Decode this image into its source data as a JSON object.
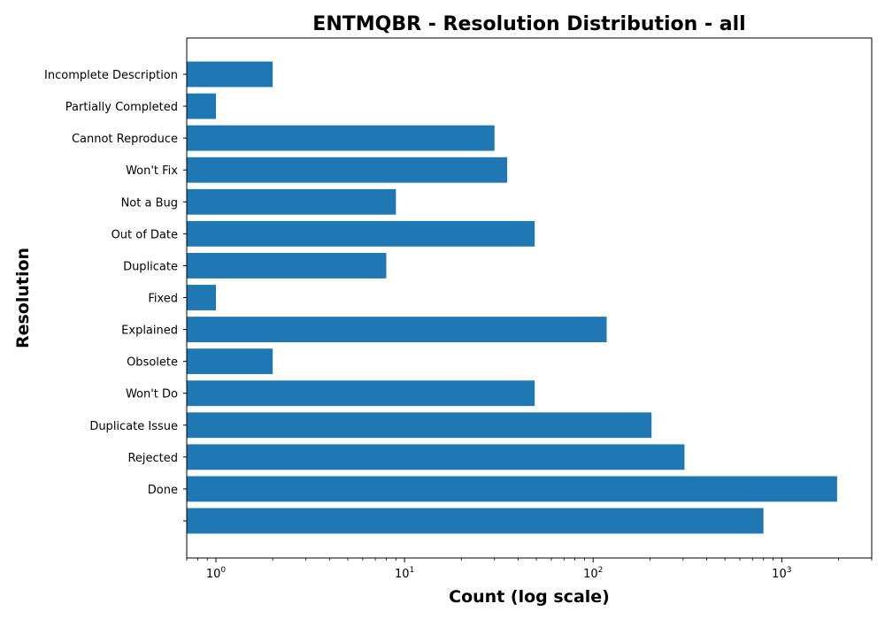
{
  "chart_data": {
    "type": "bar",
    "orientation": "horizontal",
    "title": "ENTMQBR - Resolution Distribution - all",
    "xlabel": "Count (log scale)",
    "ylabel": "Resolution",
    "x_scale": "log",
    "xlim": [
      0.7,
      3000
    ],
    "x_ticks": [
      {
        "value": 1,
        "base": "10",
        "exp": "0"
      },
      {
        "value": 10,
        "base": "10",
        "exp": "1"
      },
      {
        "value": 100,
        "base": "10",
        "exp": "2"
      },
      {
        "value": 1000,
        "base": "10",
        "exp": "3"
      }
    ],
    "categories": [
      "Incomplete Description",
      "Partially Completed",
      "Cannot Reproduce",
      "Won't Fix",
      "Not a Bug",
      "Out of Date",
      "Duplicate",
      "Fixed",
      "Explained",
      "Obsolete",
      "Won't Do",
      "Duplicate Issue",
      "Rejected",
      "Done",
      ""
    ],
    "values": [
      2,
      1,
      30,
      35,
      9,
      49,
      8,
      1,
      118,
      2,
      49,
      204,
      305,
      1966,
      800
    ],
    "bar_color": "#1f77b4",
    "grid": false
  }
}
